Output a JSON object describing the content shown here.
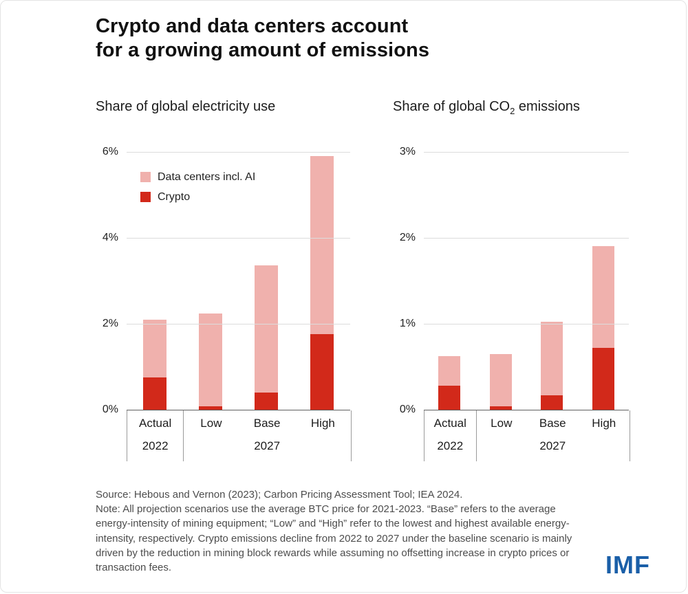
{
  "title": {
    "line1": "Crypto and data centers account",
    "line2": "for a growing amount of emissions"
  },
  "colors": {
    "crypto": "#d2291a",
    "datacenters": "#f0b1ad",
    "imf_blue": "#1a5fa8",
    "gridline": "#dcdcdc"
  },
  "legend": [
    {
      "label": "Data centers incl. AI",
      "color": "#f0b1ad"
    },
    {
      "label": "Crypto",
      "color": "#d2291a"
    }
  ],
  "chart_data": [
    {
      "type": "bar",
      "stacked": true,
      "title": "Share of global electricity use",
      "title_sub": "",
      "title_suffix": "",
      "categories": [
        "Actual",
        "Low",
        "Base",
        "High"
      ],
      "year_groups": [
        {
          "label": "2022",
          "span": 1
        },
        {
          "label": "2027",
          "span": 3
        }
      ],
      "series": [
        {
          "name": "Crypto",
          "values": [
            0.75,
            0.08,
            0.4,
            1.75
          ]
        },
        {
          "name": "Data centers incl. AI",
          "values": [
            1.35,
            2.15,
            2.95,
            4.15
          ]
        }
      ],
      "totals": [
        2.1,
        2.23,
        3.35,
        5.9
      ],
      "ylim": [
        0,
        6
      ],
      "yticks": [
        "0%",
        "2%",
        "4%",
        "6%"
      ],
      "ytick_values": [
        0,
        2,
        4,
        6
      ],
      "grid": true,
      "legend_position": "top-left-inside"
    },
    {
      "type": "bar",
      "stacked": true,
      "title": "Share of global CO",
      "title_sub": "2",
      "title_suffix": " emissions",
      "categories": [
        "Actual",
        "Low",
        "Base",
        "High"
      ],
      "year_groups": [
        {
          "label": "2022",
          "span": 1
        },
        {
          "label": "2027",
          "span": 3
        }
      ],
      "series": [
        {
          "name": "Crypto",
          "values": [
            0.28,
            0.04,
            0.17,
            0.72
          ]
        },
        {
          "name": "Data centers incl. AI",
          "values": [
            0.34,
            0.61,
            0.85,
            1.18
          ]
        }
      ],
      "totals": [
        0.62,
        0.65,
        1.02,
        1.9
      ],
      "ylim": [
        0,
        3
      ],
      "yticks": [
        "0%",
        "1%",
        "2%",
        "3%"
      ],
      "ytick_values": [
        0,
        1,
        2,
        3
      ],
      "grid": true,
      "legend_position": "none"
    }
  ],
  "footer": {
    "source": "Source: Hebous and Vernon (2023); Carbon Pricing Assessment Tool; IEA 2024.",
    "note": "Note: All projection scenarios use the average BTC price for 2021-2023. “Base” refers to the average energy-intensity of mining equipment; “Low” and “High” refer to the lowest and highest available energy-intensity, respectively. Crypto emissions decline from 2022 to 2027 under the baseline scenario is mainly driven by the reduction in mining block rewards while assuming no offsetting increase in crypto prices or transaction fees.",
    "logo": "IMF"
  }
}
